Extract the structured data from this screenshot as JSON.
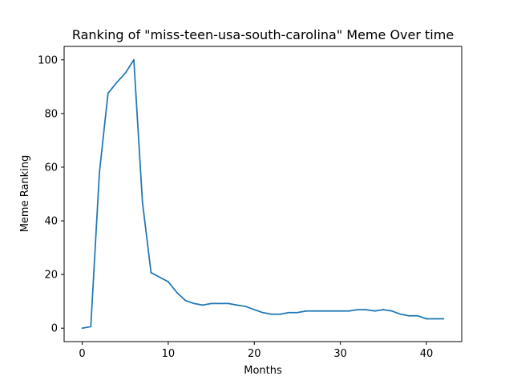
{
  "chart_data": {
    "type": "line",
    "title": "Ranking of \"miss-teen-usa-south-carolina\" Meme Over time",
    "xlabel": "Months",
    "ylabel": "Meme Ranking",
    "xlim": [
      -2.1,
      44.1
    ],
    "ylim": [
      -5,
      105
    ],
    "xticks": [
      0,
      10,
      20,
      30,
      40
    ],
    "yticks": [
      0,
      20,
      40,
      60,
      80,
      100
    ],
    "grid": false,
    "legend": "none",
    "series": [
      {
        "color": "#1f77b4",
        "x": [
          0,
          1,
          2,
          3,
          4,
          5,
          6,
          7,
          8,
          9,
          10,
          11,
          12,
          13,
          14,
          15,
          16,
          17,
          18,
          19,
          20,
          21,
          22,
          23,
          24,
          25,
          26,
          27,
          28,
          29,
          30,
          31,
          32,
          33,
          34,
          35,
          36,
          37,
          38,
          39,
          40,
          41,
          42
        ],
        "values": [
          0,
          0.6,
          58,
          87.5,
          91.5,
          95,
          100,
          47,
          20.7,
          19,
          17.3,
          13.3,
          10.3,
          9.2,
          8.6,
          9.2,
          9.2,
          9.2,
          8.6,
          8.1,
          6.9,
          5.8,
          5.2,
          5.2,
          5.8,
          5.8,
          6.4,
          6.4,
          6.4,
          6.4,
          6.4,
          6.4,
          6.9,
          6.9,
          6.4,
          6.9,
          6.4,
          5.2,
          4.6,
          4.6,
          3.5,
          3.5,
          3.5
        ]
      }
    ]
  }
}
